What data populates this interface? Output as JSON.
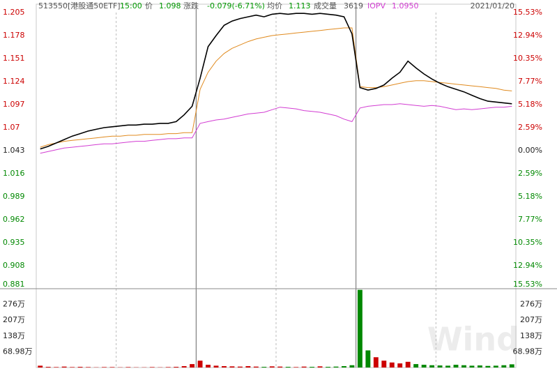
{
  "header": {
    "code": "513550[港股通50ETF]",
    "time": "15:00",
    "price": "1.098",
    "change_label": "涨跌",
    "change": "-0.079(-6.71%)",
    "avg": "1.113",
    "volume_label": "成交量",
    "volume": "3619",
    "iopv": "1.0950",
    "date": "2021/01/20",
    "watermark": "Wind"
  },
  "chart_data": [
    {
      "type": "line",
      "ylim": [
        0.881,
        1.205
      ],
      "yticks": [
        1.205,
        1.178,
        1.151,
        1.124,
        1.097,
        1.07,
        1.043,
        1.016,
        0.989,
        0.962,
        0.935,
        0.908,
        0.881
      ],
      "y2lim": [
        -15.53,
        15.53
      ],
      "y2ticks": [
        {
          "value": 15.53,
          "label": "15.53%"
        },
        {
          "value": 12.94,
          "label": "12.94%"
        },
        {
          "value": 10.35,
          "label": "10.35%"
        },
        {
          "value": 7.77,
          "label": "7.77%"
        },
        {
          "value": 5.18,
          "label": "5.18%"
        },
        {
          "value": 2.59,
          "label": "2.59%"
        },
        {
          "value": 0,
          "label": "0.00%"
        },
        {
          "value": -2.59,
          "label": "2.59%"
        },
        {
          "value": -5.18,
          "label": "5.18%"
        },
        {
          "value": -7.77,
          "label": "7.77%"
        },
        {
          "value": -10.35,
          "label": "10.35%"
        },
        {
          "value": -12.94,
          "label": "12.94%"
        },
        {
          "value": -15.53,
          "label": "15.53%"
        }
      ],
      "series": [
        {
          "name": "价",
          "color": "#000000",
          "values": [
            1.045,
            1.048,
            1.052,
            1.056,
            1.06,
            1.063,
            1.066,
            1.068,
            1.07,
            1.071,
            1.072,
            1.073,
            1.073,
            1.074,
            1.074,
            1.075,
            1.075,
            1.077,
            1.085,
            1.095,
            1.128,
            1.165,
            1.178,
            1.19,
            1.195,
            1.198,
            1.2,
            1.202,
            1.2,
            1.203,
            1.204,
            1.203,
            1.204,
            1.204,
            1.203,
            1.204,
            1.203,
            1.202,
            1.2,
            1.18,
            1.117,
            1.114,
            1.116,
            1.12,
            1.128,
            1.135,
            1.148,
            1.14,
            1.133,
            1.127,
            1.122,
            1.118,
            1.115,
            1.112,
            1.108,
            1.104,
            1.101,
            1.1,
            1.099,
            1.098
          ]
        },
        {
          "name": "均价",
          "color": "#e08a1e",
          "values": [
            1.047,
            1.05,
            1.052,
            1.054,
            1.055,
            1.056,
            1.057,
            1.058,
            1.059,
            1.06,
            1.06,
            1.061,
            1.061,
            1.062,
            1.062,
            1.062,
            1.063,
            1.063,
            1.064,
            1.064,
            1.115,
            1.135,
            1.148,
            1.157,
            1.163,
            1.167,
            1.171,
            1.174,
            1.176,
            1.178,
            1.179,
            1.18,
            1.181,
            1.182,
            1.183,
            1.184,
            1.185,
            1.186,
            1.187,
            1.187,
            1.118,
            1.117,
            1.117,
            1.118,
            1.12,
            1.122,
            1.124,
            1.125,
            1.125,
            1.124,
            1.123,
            1.122,
            1.121,
            1.12,
            1.119,
            1.118,
            1.117,
            1.116,
            1.114,
            1.113
          ]
        },
        {
          "name": "IOPV",
          "color": "#d23cd2",
          "values": [
            1.04,
            1.042,
            1.044,
            1.046,
            1.047,
            1.048,
            1.049,
            1.05,
            1.051,
            1.051,
            1.052,
            1.053,
            1.054,
            1.054,
            1.055,
            1.056,
            1.057,
            1.057,
            1.058,
            1.058,
            1.075,
            1.077,
            1.079,
            1.08,
            1.082,
            1.084,
            1.086,
            1.087,
            1.088,
            1.091,
            1.094,
            1.093,
            1.092,
            1.09,
            1.089,
            1.088,
            1.086,
            1.084,
            1.08,
            1.077,
            1.093,
            1.095,
            1.096,
            1.097,
            1.097,
            1.098,
            1.097,
            1.096,
            1.095,
            1.096,
            1.095,
            1.093,
            1.091,
            1.092,
            1.091,
            1.092,
            1.093,
            1.094,
            1.094,
            1.095
          ]
        }
      ]
    },
    {
      "type": "bar",
      "ylim": [
        0,
        345
      ],
      "yticks": [
        {
          "value": 276,
          "label": "276万"
        },
        {
          "value": 207,
          "label": "207万"
        },
        {
          "value": 138,
          "label": "138万"
        },
        {
          "value": 68.98,
          "label": "68.98万"
        }
      ],
      "values": [
        8,
        3,
        2,
        4,
        2,
        3,
        2,
        1,
        2,
        2,
        1,
        2,
        1,
        1,
        2,
        1,
        2,
        3,
        6,
        15,
        30,
        12,
        8,
        6,
        5,
        4,
        6,
        4,
        3,
        5,
        4,
        3,
        2,
        4,
        3,
        5,
        3,
        4,
        6,
        10,
        340,
        75,
        45,
        30,
        22,
        18,
        25,
        15,
        12,
        10,
        9,
        8,
        12,
        10,
        8,
        9,
        7,
        8,
        10,
        14
      ]
    }
  ]
}
